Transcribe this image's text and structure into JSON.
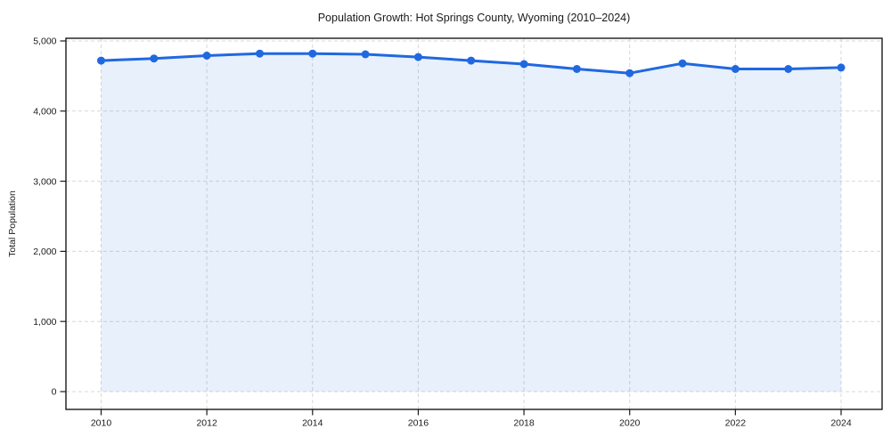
{
  "chart_data": {
    "type": "area",
    "title": "Population Growth: Hot Springs County, Wyoming (2010–2024)",
    "xlabel": "",
    "ylabel": "Total Population",
    "x": [
      2010,
      2011,
      2012,
      2013,
      2014,
      2015,
      2016,
      2017,
      2018,
      2019,
      2020,
      2021,
      2022,
      2023,
      2024
    ],
    "series": [
      {
        "name": "Total Population",
        "values": [
          4720,
          4750,
          4790,
          4820,
          4820,
          4810,
          4770,
          4720,
          4670,
          4600,
          4540,
          4680,
          4600,
          4600,
          4620
        ]
      }
    ],
    "ylim": [
      0,
      5000
    ],
    "xticks": [
      2010,
      2012,
      2014,
      2016,
      2018,
      2020,
      2022,
      2024
    ],
    "xtick_labels": [
      "2010",
      "2012",
      "2014",
      "2016",
      "2018",
      "2020",
      "2022",
      "2024"
    ],
    "yticks": [
      0,
      1000,
      2000,
      3000,
      4000,
      5000
    ],
    "ytick_labels": [
      "0",
      "1,000",
      "2,000",
      "3,000",
      "4,000",
      "5,000"
    ],
    "grid": true,
    "grid_style": "dashed",
    "legend_position": "none",
    "marker": "circle",
    "colors": {
      "line": "#2068e0",
      "marker": "#2068e0",
      "fill": "rgba(32, 104, 224, 0.10)",
      "grid": "#d7d7d7",
      "axis": "#1a1a1a",
      "text": "#1a1a1a",
      "background": "#ffffff"
    }
  }
}
